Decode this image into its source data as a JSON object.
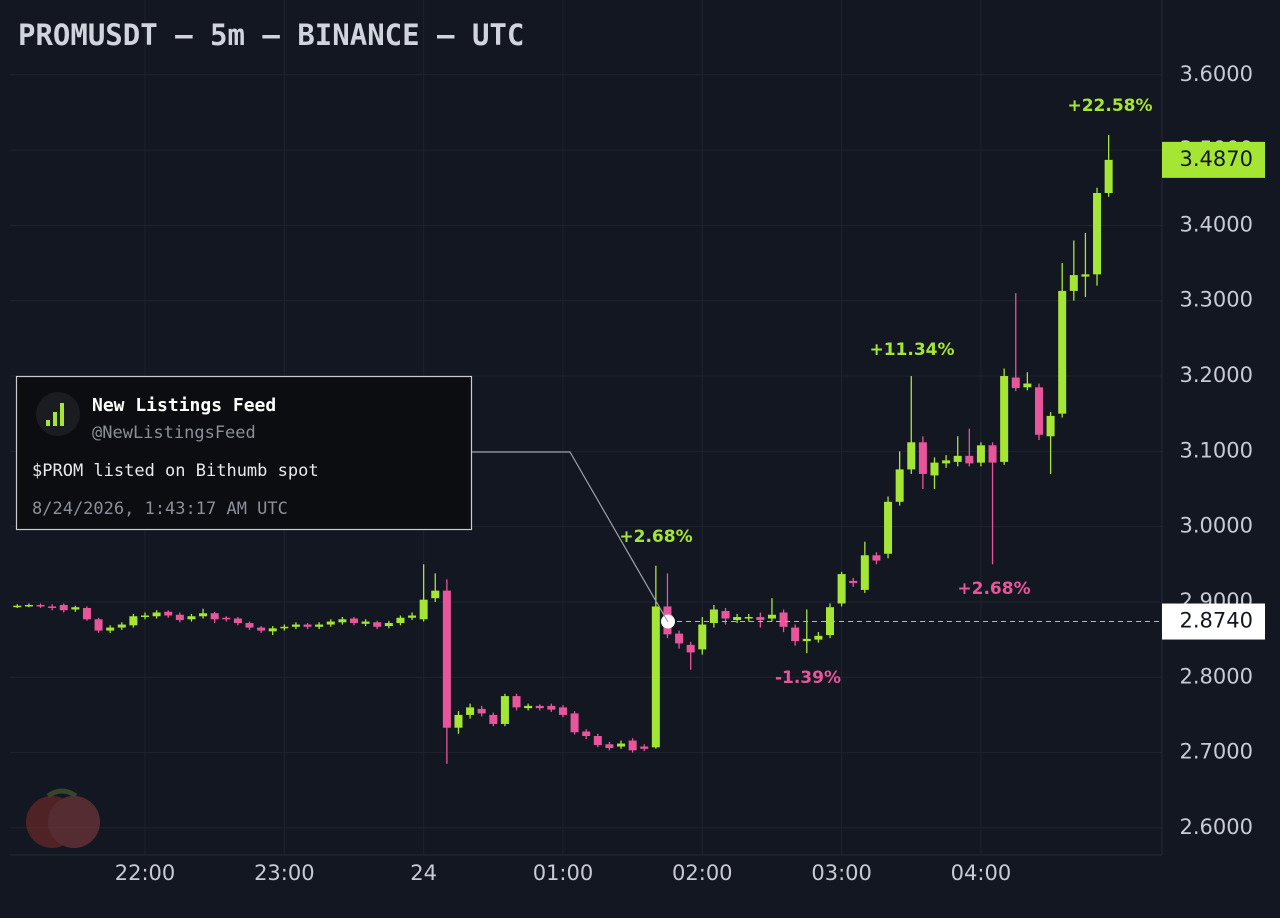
{
  "chart_data": {
    "type": "candlestick",
    "title": "PROMUSDT — 5m — BINANCE — UTC",
    "up_color": "#a5e635",
    "down_color": "#e8559a",
    "grid": true,
    "ylim": [
      2.564,
      3.686
    ],
    "yticks": [
      {
        "value": 2.6,
        "label": "2.6000"
      },
      {
        "value": 2.7,
        "label": "2.7000"
      },
      {
        "value": 2.8,
        "label": "2.8000"
      },
      {
        "value": 2.9,
        "label": "2.9000"
      },
      {
        "value": 3.0,
        "label": "3.0000"
      },
      {
        "value": 3.1,
        "label": "3.1000"
      },
      {
        "value": 3.2,
        "label": "3.2000"
      },
      {
        "value": 3.3,
        "label": "3.3000"
      },
      {
        "value": 3.4,
        "label": "3.4000"
      },
      {
        "value": 3.5,
        "label": "3.5000"
      },
      {
        "value": 3.6,
        "label": "3.6000"
      }
    ],
    "categories": [
      null,
      null,
      null,
      null,
      null,
      null,
      null,
      null,
      null,
      null,
      null,
      "22:00",
      null,
      null,
      null,
      null,
      null,
      null,
      null,
      null,
      null,
      null,
      null,
      "23:00",
      null,
      null,
      null,
      null,
      null,
      null,
      null,
      null,
      null,
      null,
      null,
      "24",
      null,
      null,
      null,
      null,
      null,
      null,
      null,
      null,
      null,
      null,
      null,
      "01:00",
      null,
      null,
      null,
      null,
      null,
      null,
      null,
      null,
      null,
      null,
      null,
      "02:00",
      null,
      null,
      null,
      null,
      null,
      null,
      null,
      null,
      null,
      null,
      null,
      "03:00",
      null,
      null,
      null,
      null,
      null,
      null,
      null,
      null,
      null,
      null,
      null,
      "04:00",
      null,
      null,
      null,
      null,
      null,
      null,
      null,
      null,
      null,
      null,
      null
    ],
    "open": [
      2.894,
      2.895,
      2.896,
      2.894,
      2.896,
      2.89,
      2.892,
      2.877,
      2.862,
      2.866,
      2.869,
      2.88,
      2.881,
      2.887,
      2.883,
      2.877,
      2.881,
      2.885,
      2.879,
      2.878,
      2.872,
      2.866,
      2.861,
      2.865,
      2.867,
      2.87,
      2.867,
      2.87,
      2.873,
      2.878,
      2.871,
      2.873,
      2.868,
      2.872,
      2.879,
      2.877,
      2.905,
      2.915,
      2.733,
      2.75,
      2.758,
      2.75,
      2.738,
      2.775,
      2.759,
      2.762,
      2.762,
      2.76,
      2.752,
      2.728,
      2.722,
      2.711,
      2.708,
      2.716,
      2.708,
      2.707,
      2.894,
      2.858,
      2.843,
      2.837,
      2.872,
      2.888,
      2.876,
      2.878,
      2.88,
      2.878,
      2.886,
      2.866,
      2.848,
      2.85,
      2.856,
      2.898,
      2.928,
      2.916,
      2.962,
      2.964,
      3.033,
      3.076,
      3.112,
      3.068,
      3.084,
      3.086,
      3.094,
      3.085,
      3.108,
      3.086,
      3.198,
      3.185,
      3.185,
      3.12,
      3.15,
      3.313,
      3.332,
      3.335,
      3.443
    ],
    "high": [
      2.897,
      2.898,
      2.898,
      2.897,
      2.898,
      2.895,
      2.894,
      2.879,
      2.869,
      2.873,
      2.884,
      2.886,
      2.889,
      2.889,
      2.886,
      2.884,
      2.891,
      2.887,
      2.881,
      2.88,
      2.874,
      2.868,
      2.868,
      2.87,
      2.873,
      2.872,
      2.873,
      2.877,
      2.88,
      2.88,
      2.877,
      2.875,
      2.875,
      2.882,
      2.886,
      2.95,
      2.938,
      2.93,
      2.755,
      2.765,
      2.762,
      2.753,
      2.778,
      2.778,
      2.765,
      2.764,
      2.765,
      2.763,
      2.755,
      2.731,
      2.725,
      2.714,
      2.716,
      2.719,
      2.711,
      2.948,
      2.938,
      2.862,
      2.847,
      2.88,
      2.896,
      2.892,
      2.884,
      2.884,
      2.886,
      2.905,
      2.89,
      2.87,
      2.89,
      2.86,
      2.898,
      2.94,
      2.932,
      2.98,
      2.966,
      3.04,
      3.1,
      3.2,
      3.12,
      3.092,
      3.095,
      3.12,
      3.13,
      3.112,
      3.112,
      3.21,
      3.31,
      3.205,
      3.19,
      3.152,
      3.35,
      3.38,
      3.39,
      3.45,
      3.52
    ],
    "low": [
      2.892,
      2.893,
      2.892,
      2.889,
      2.886,
      2.887,
      2.875,
      2.859,
      2.859,
      2.863,
      2.866,
      2.877,
      2.878,
      2.879,
      2.873,
      2.874,
      2.878,
      2.872,
      2.874,
      2.869,
      2.863,
      2.859,
      2.856,
      2.862,
      2.864,
      2.864,
      2.864,
      2.867,
      2.87,
      2.869,
      2.868,
      2.864,
      2.865,
      2.869,
      2.876,
      2.874,
      2.9,
      2.685,
      2.725,
      2.745,
      2.748,
      2.735,
      2.735,
      2.756,
      2.756,
      2.756,
      2.754,
      2.747,
      2.724,
      2.718,
      2.707,
      2.703,
      2.705,
      2.7,
      2.702,
      2.705,
      2.852,
      2.838,
      2.81,
      2.83,
      2.866,
      2.87,
      2.872,
      2.874,
      2.866,
      2.874,
      2.86,
      2.842,
      2.832,
      2.846,
      2.852,
      2.894,
      2.92,
      2.912,
      2.95,
      2.958,
      3.028,
      3.07,
      3.05,
      3.05,
      3.078,
      3.08,
      3.08,
      3.08,
      2.95,
      3.082,
      3.18,
      3.181,
      3.115,
      3.07,
      3.145,
      3.3,
      3.305,
      3.32,
      3.438
    ],
    "close": [
      2.895,
      2.896,
      2.894,
      2.892,
      2.889,
      2.893,
      2.877,
      2.862,
      2.866,
      2.87,
      2.881,
      2.882,
      2.886,
      2.882,
      2.876,
      2.881,
      2.885,
      2.877,
      2.877,
      2.872,
      2.866,
      2.862,
      2.865,
      2.867,
      2.87,
      2.867,
      2.87,
      2.874,
      2.877,
      2.872,
      2.874,
      2.867,
      2.872,
      2.879,
      2.882,
      2.903,
      2.915,
      2.733,
      2.75,
      2.76,
      2.752,
      2.738,
      2.775,
      2.76,
      2.762,
      2.759,
      2.757,
      2.75,
      2.727,
      2.722,
      2.71,
      2.706,
      2.712,
      2.703,
      2.705,
      2.894,
      2.857,
      2.845,
      2.833,
      2.87,
      2.89,
      2.878,
      2.88,
      2.88,
      2.876,
      2.883,
      2.867,
      2.848,
      2.851,
      2.855,
      2.893,
      2.937,
      2.925,
      2.962,
      2.955,
      3.033,
      3.076,
      3.112,
      3.07,
      3.085,
      3.088,
      3.094,
      3.084,
      3.108,
      3.085,
      3.2,
      3.184,
      3.19,
      3.122,
      3.147,
      3.313,
      3.334,
      3.335,
      3.443,
      3.487
    ],
    "price_lines": [
      {
        "value": 3.487,
        "label": "3.4870",
        "color": "#a5e635"
      },
      {
        "value": 2.874,
        "label": "2.8740",
        "color": "#ffffff"
      }
    ],
    "annotations": [
      {
        "text": "+22.58%",
        "color": "#a5e635"
      },
      {
        "text": "+11.34%",
        "color": "#a5e635"
      },
      {
        "text": "+2.68%",
        "color": "#a5e635"
      },
      {
        "text": "+2.68%",
        "color": "#e8559a"
      },
      {
        "text": "-1.39%",
        "color": "#e8559a"
      }
    ],
    "event": {
      "name": "New Listings Feed",
      "handle": "@NewListingsFeed",
      "text": "$PROM listed on Bithumb spot",
      "time": "8/24/2026, 1:43:17 AM UTC"
    }
  }
}
